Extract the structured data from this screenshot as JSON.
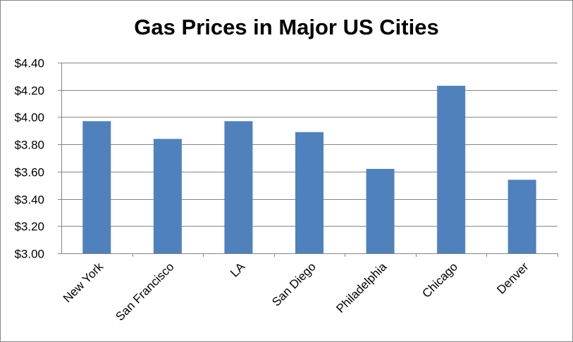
{
  "chart_data": {
    "type": "bar",
    "title": "Gas Prices in Major US Cities",
    "xlabel": "",
    "ylabel": "",
    "categories": [
      "New York",
      "San Francisco",
      "LA",
      "San Diego",
      "Philadelphia",
      "Chicago",
      "Denver"
    ],
    "values": [
      3.97,
      3.84,
      3.97,
      3.89,
      3.62,
      4.23,
      3.54
    ],
    "ylim": [
      3.0,
      4.4
    ],
    "yticks": [
      3.0,
      3.2,
      3.4,
      3.6,
      3.8,
      4.0,
      4.2,
      4.4
    ],
    "ytick_labels": [
      "$3.00",
      "$3.20",
      "$3.40",
      "$3.60",
      "$3.80",
      "$4.00",
      "$4.20",
      "$4.40"
    ],
    "grid": true,
    "legend": "none",
    "bar_color": "#4F81BD",
    "grid_color": "#868686"
  }
}
